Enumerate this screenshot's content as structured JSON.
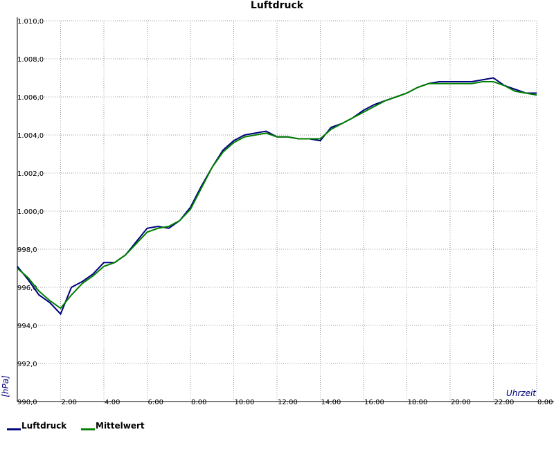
{
  "chart_data": {
    "type": "line",
    "title": "Luftdruck",
    "y_label": "[hPa]",
    "x_label": "Uhrzeit",
    "xlim": [
      0,
      24
    ],
    "ylim": [
      990,
      1010
    ],
    "xticks": [
      {
        "value": 2,
        "label": "2:00"
      },
      {
        "value": 4,
        "label": "4:00"
      },
      {
        "value": 6,
        "label": "6:00"
      },
      {
        "value": 8,
        "label": "8:00"
      },
      {
        "value": 10,
        "label": "10:00"
      },
      {
        "value": 12,
        "label": "12:00"
      },
      {
        "value": 14,
        "label": "14:00"
      },
      {
        "value": 16,
        "label": "16:00"
      },
      {
        "value": 18,
        "label": "18:00"
      },
      {
        "value": 20,
        "label": "20:00"
      },
      {
        "value": 22,
        "label": "22:00"
      },
      {
        "value": 24,
        "label": "0:00"
      }
    ],
    "yticks": [
      {
        "value": 990,
        "label": "990,0"
      },
      {
        "value": 992,
        "label": "992,0"
      },
      {
        "value": 994,
        "label": "994,0"
      },
      {
        "value": 996,
        "label": "996,0"
      },
      {
        "value": 998,
        "label": "998,0"
      },
      {
        "value": 1000,
        "label": "1.000,0"
      },
      {
        "value": 1002,
        "label": "1.002,0"
      },
      {
        "value": 1004,
        "label": "1.004,0"
      },
      {
        "value": 1006,
        "label": "1.006,0"
      },
      {
        "value": 1008,
        "label": "1.008,0"
      },
      {
        "value": 1010,
        "label": "1.010,0"
      }
    ],
    "grid": true,
    "legend": "bottom-left",
    "x": [
      0,
      0.5,
      1,
      1.5,
      2,
      2.5,
      3,
      3.5,
      4,
      4.5,
      5,
      5.5,
      6,
      6.5,
      7,
      7.5,
      8,
      8.5,
      9,
      9.5,
      10,
      10.5,
      11,
      11.5,
      12,
      12.5,
      13,
      13.5,
      14,
      14.5,
      15,
      15.5,
      16,
      16.5,
      17,
      17.5,
      18,
      18.5,
      19,
      19.5,
      20,
      20.5,
      21,
      21.5,
      22,
      22.5,
      23,
      23.5,
      24
    ],
    "series": [
      {
        "name": "Luftdruck",
        "color": "#000080",
        "values": [
          997.1,
          996.4,
          995.6,
          995.2,
          994.6,
          996.0,
          996.3,
          996.7,
          997.3,
          997.3,
          997.7,
          998.4,
          999.1,
          999.2,
          999.1,
          999.5,
          1000.2,
          1001.3,
          1002.3,
          1003.2,
          1003.7,
          1004.0,
          1004.1,
          1004.2,
          1003.9,
          1003.9,
          1003.8,
          1003.8,
          1003.7,
          1004.4,
          1004.6,
          1004.9,
          1005.3,
          1005.6,
          1005.8,
          1006.0,
          1006.2,
          1006.5,
          1006.7,
          1006.8,
          1006.8,
          1006.8,
          1006.8,
          1006.9,
          1007.0,
          1006.6,
          1006.4,
          1006.2,
          1006.2
        ]
      },
      {
        "name": "Mittelwert",
        "color": "#008000",
        "values": [
          997.0,
          996.5,
          995.8,
          995.3,
          994.9,
          995.6,
          996.2,
          996.6,
          997.1,
          997.3,
          997.7,
          998.3,
          998.9,
          999.1,
          999.2,
          999.5,
          1000.1,
          1001.2,
          1002.3,
          1003.1,
          1003.6,
          1003.9,
          1004.0,
          1004.1,
          1003.9,
          1003.9,
          1003.8,
          1003.8,
          1003.8,
          1004.3,
          1004.6,
          1004.9,
          1005.2,
          1005.5,
          1005.8,
          1006.0,
          1006.2,
          1006.5,
          1006.7,
          1006.7,
          1006.7,
          1006.7,
          1006.7,
          1006.8,
          1006.8,
          1006.6,
          1006.3,
          1006.2,
          1006.1
        ]
      }
    ]
  }
}
